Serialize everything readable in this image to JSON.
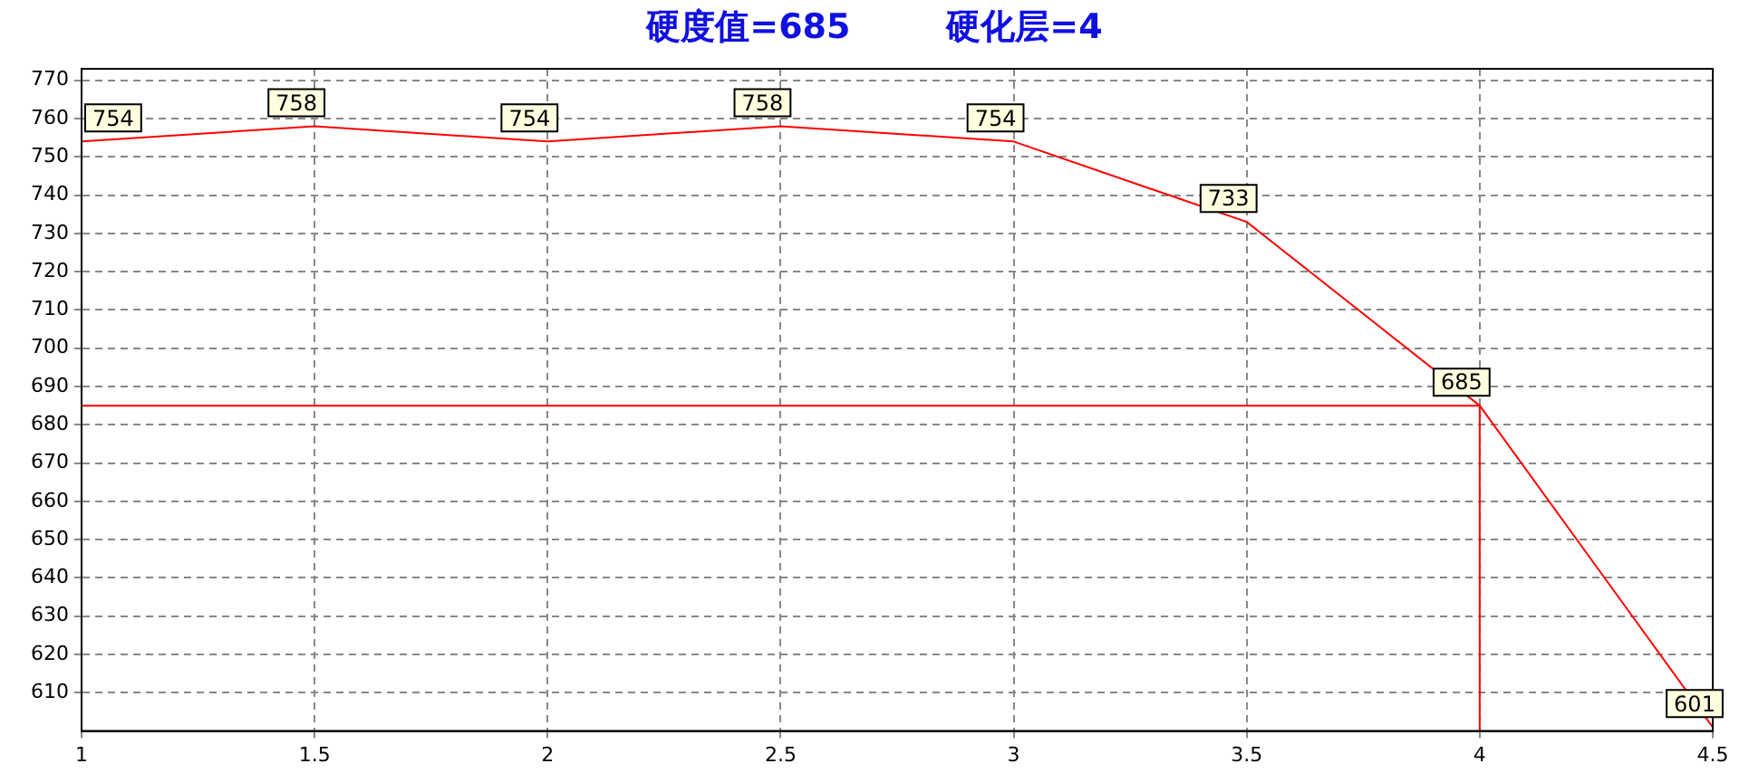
{
  "chart_data": {
    "type": "line",
    "title": "硬度值=685        硬化层=4",
    "x": [
      1,
      1.5,
      2,
      2.5,
      3,
      3.5,
      4,
      4.5
    ],
    "series": [
      {
        "color": "#ff0000",
        "values": [
          754,
          758,
          754,
          758,
          754,
          733,
          685,
          601
        ]
      }
    ],
    "xlim": [
      1,
      4.5
    ],
    "xticks": [
      1,
      1.5,
      2,
      2.5,
      3,
      3.5,
      4,
      4.5
    ],
    "ylim": [
      600,
      773
    ],
    "yticks": [
      610,
      620,
      630,
      640,
      650,
      660,
      670,
      680,
      690,
      700,
      710,
      720,
      730,
      740,
      750,
      760,
      770
    ],
    "ref_lines": [
      {
        "axis": "y",
        "value": 685,
        "color": "#ff0000"
      },
      {
        "axis": "x",
        "value": 4,
        "color": "#ff0000"
      }
    ],
    "grid": true,
    "marker": "none",
    "line_style": "solid",
    "data_labels": true,
    "legend": false
  }
}
